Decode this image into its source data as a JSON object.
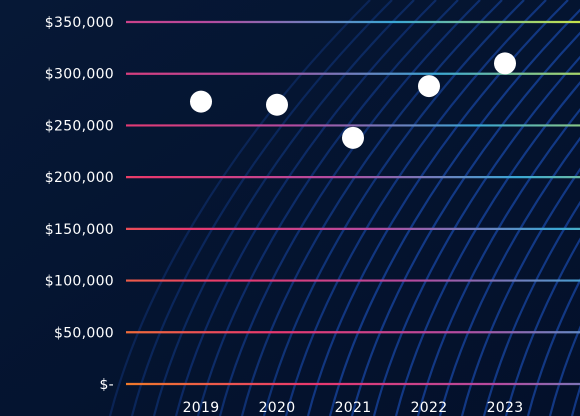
{
  "chart_data": {
    "type": "scatter",
    "title": "",
    "xlabel": "",
    "ylabel": "",
    "x": [
      "2019",
      "2020",
      "2021",
      "2022",
      "2023"
    ],
    "y": [
      273000,
      270000,
      238000,
      288000,
      310000
    ],
    "ylim": [
      0,
      350000
    ],
    "yticks": [
      0,
      50000,
      100000,
      150000,
      200000,
      250000,
      300000,
      350000
    ],
    "ytick_labels": [
      "$-",
      "$50,000",
      "$100,000",
      "$150,000",
      "$200,000",
      "$250,000",
      "$300,000",
      "$350,000"
    ],
    "grid": true,
    "legend": "none",
    "marker_color": "#ffffff",
    "background_color": "#04112e",
    "background_pattern": "blue-curved-lines",
    "gridline_gradient": [
      "#f07a2a",
      "#e8386e",
      "#b44a9f",
      "#3aa7d4",
      "#c6e24a"
    ]
  }
}
